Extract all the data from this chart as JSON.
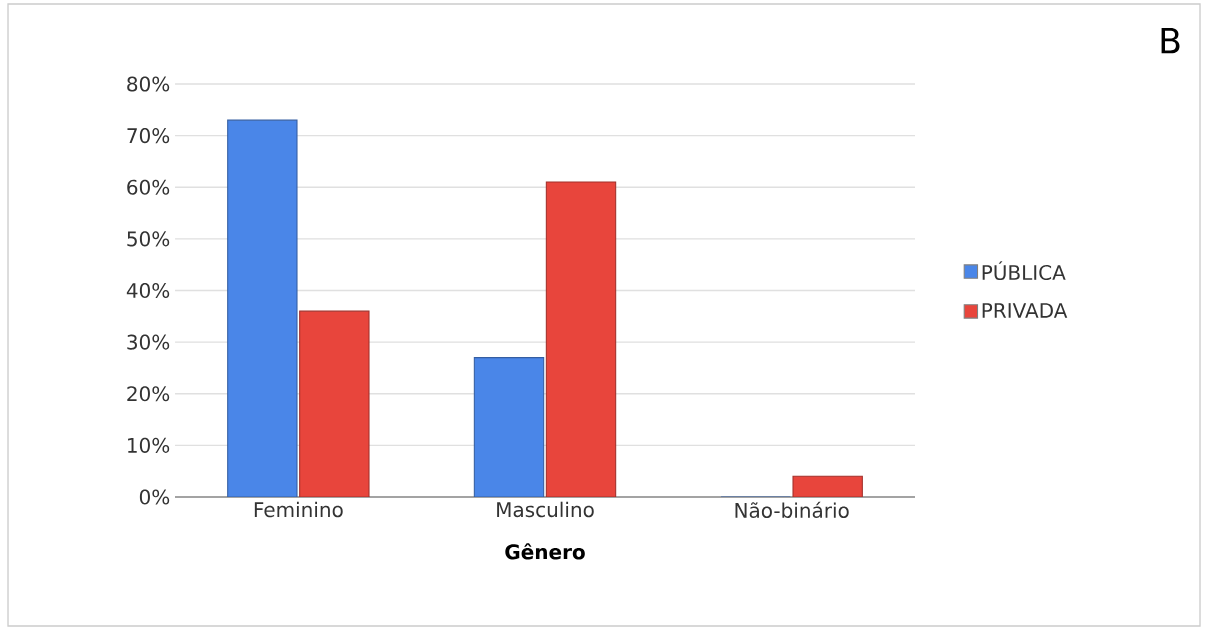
{
  "chart_data": {
    "type": "bar",
    "categories": [
      "Feminino",
      "Masculino",
      "Não-binário"
    ],
    "xlabel": "Gênero",
    "series": [
      {
        "name": "PÚBLICA",
        "color": "#4a86e8",
        "values": [
          73,
          27,
          0
        ]
      },
      {
        "name": "PRIVADA",
        "color": "#e8453c",
        "values": [
          36,
          61,
          4
        ]
      }
    ],
    "ylim": [
      0,
      80
    ],
    "yticks": [
      {
        "value": 0,
        "label": "0%"
      },
      {
        "value": 10,
        "label": "10%"
      },
      {
        "value": 20,
        "label": "20%"
      },
      {
        "value": 30,
        "label": "30%"
      },
      {
        "value": 40,
        "label": "40%"
      },
      {
        "value": 50,
        "label": "50%"
      },
      {
        "value": 60,
        "label": "60%"
      },
      {
        "value": 70,
        "label": "70%"
      },
      {
        "value": 80,
        "label": "80%"
      }
    ],
    "grid": "y",
    "legend": "right",
    "annotations": [
      "B"
    ]
  }
}
